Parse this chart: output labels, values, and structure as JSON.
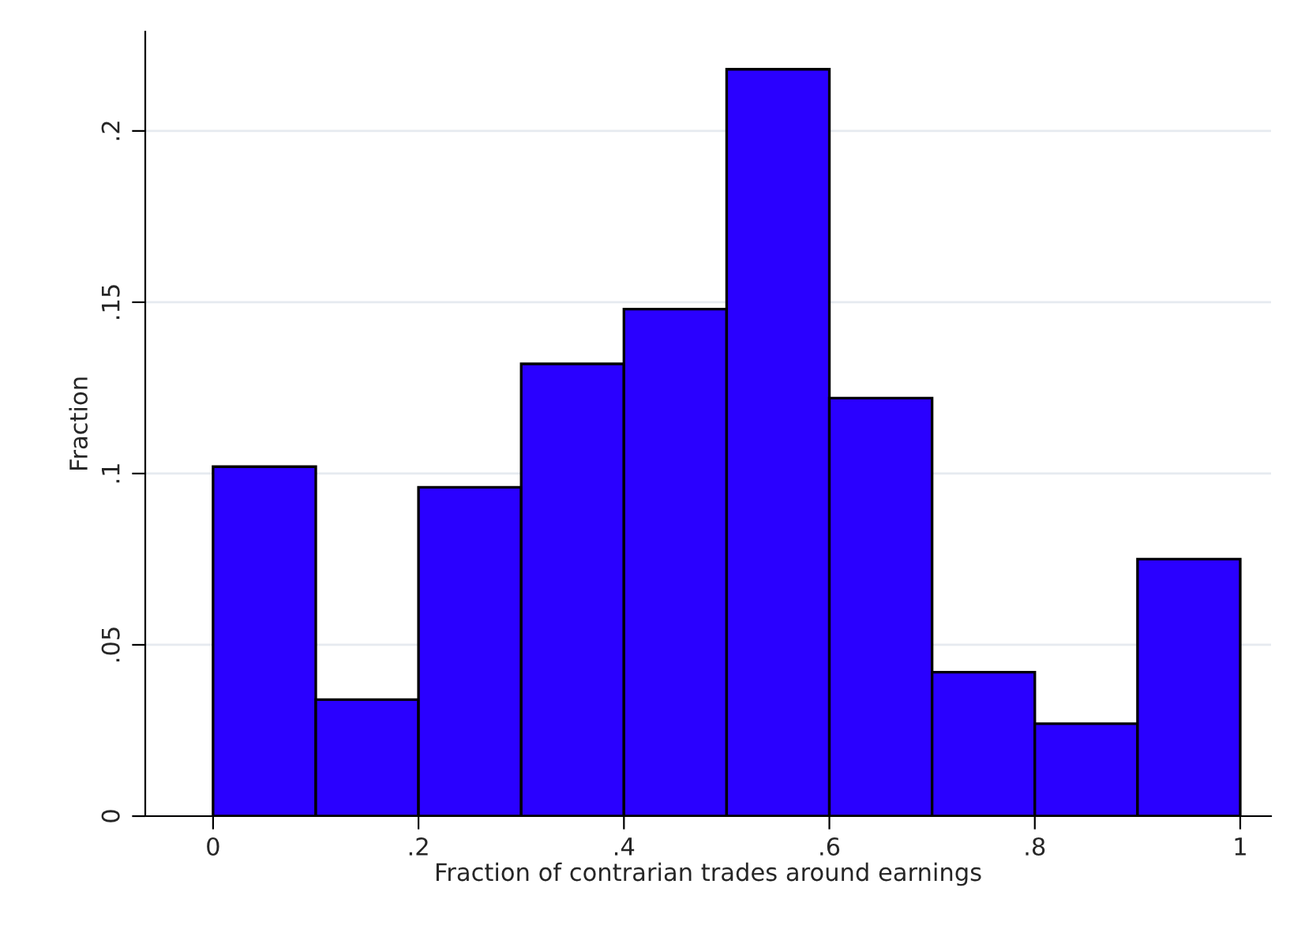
{
  "chart_data": {
    "type": "histogram",
    "xlabel": "Fraction of contrarian trades around earnings",
    "ylabel": "Fraction",
    "bins": [
      0,
      0.1,
      0.2,
      0.3,
      0.4,
      0.5,
      0.6,
      0.7,
      0.8,
      0.9,
      1.0
    ],
    "values": [
      0.102,
      0.034,
      0.096,
      0.132,
      0.148,
      0.218,
      0.122,
      0.042,
      0.027,
      0.075
    ],
    "color": "#2a00ff",
    "xlim": [
      -0.066,
      1.03
    ],
    "ylim": [
      0,
      0.229
    ],
    "xticks": [
      0,
      {
        "value": 0.2,
        "label": ".2"
      },
      {
        "value": 0.4,
        "label": ".4"
      },
      {
        "value": 0.6,
        "label": ".6"
      },
      {
        "value": 0.8,
        "label": ".8"
      },
      1
    ],
    "yticks": [
      0,
      {
        "value": 0.05,
        "label": ".05"
      },
      {
        "value": 0.1,
        "label": ".1"
      },
      {
        "value": 0.15,
        "label": ".15"
      },
      {
        "value": 0.2,
        "label": ".2"
      }
    ],
    "grid": "y"
  }
}
